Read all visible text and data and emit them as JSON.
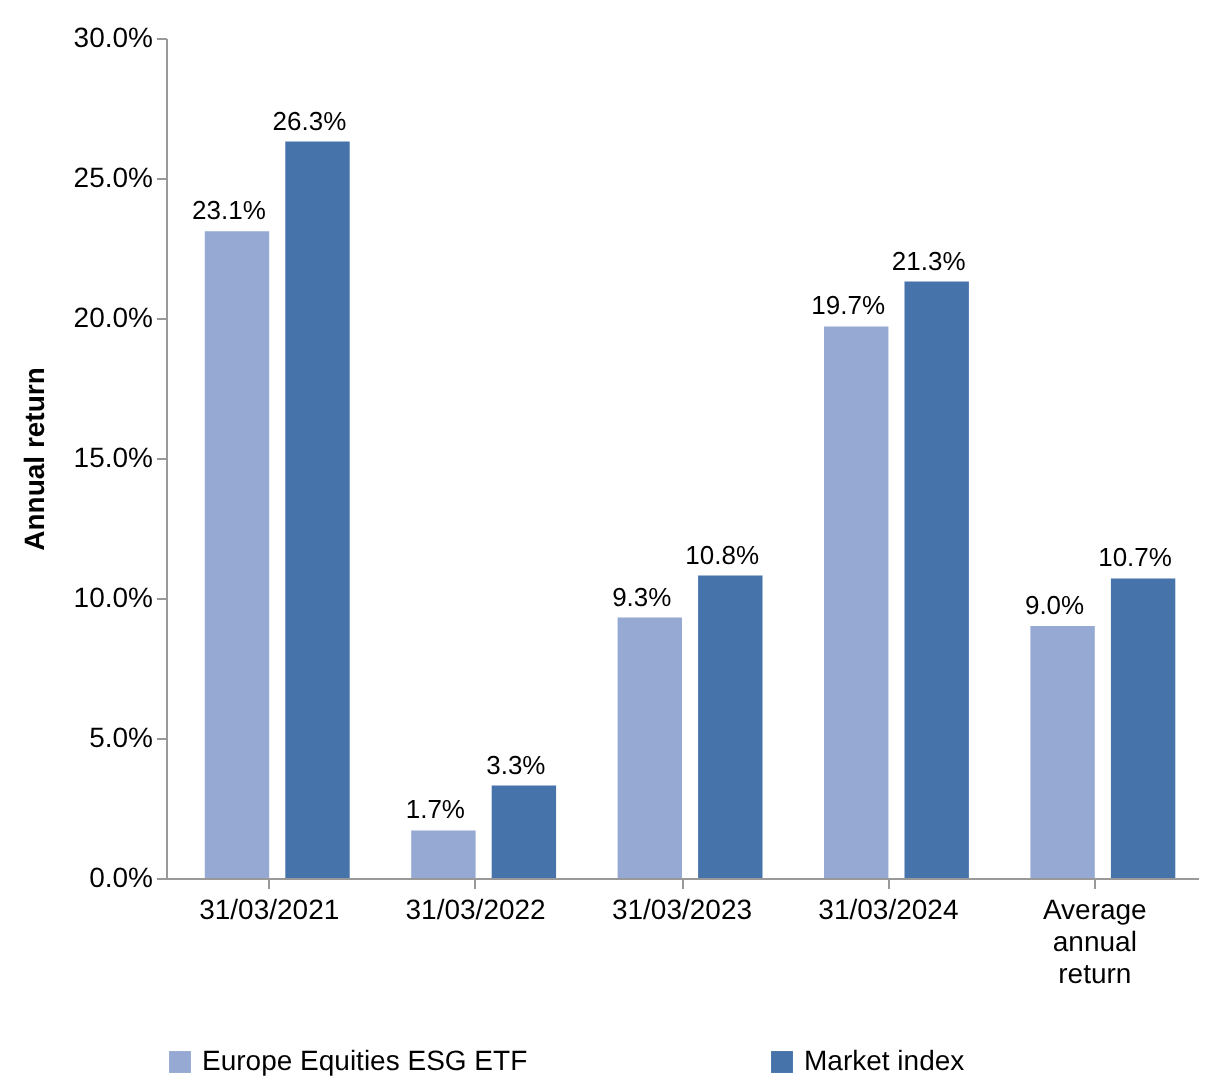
{
  "chart_data": {
    "type": "bar",
    "ylabel": "Annual return",
    "categories": [
      "31/03/2021",
      "31/03/2022",
      "31/03/2023",
      "31/03/2024",
      "Average annual return"
    ],
    "series": [
      {
        "name": "Europe Equities ESG ETF",
        "color": "#95a9d3",
        "values": [
          23.1,
          1.7,
          9.3,
          19.7,
          9.0
        ],
        "value_labels": [
          "23.1%",
          "1.7%",
          "9.3%",
          "19.7%",
          "9.0%"
        ]
      },
      {
        "name": "Market index",
        "color": "#4673aa",
        "values": [
          26.3,
          3.3,
          10.8,
          21.3,
          10.7
        ],
        "value_labels": [
          "26.3%",
          "3.3%",
          "10.8%",
          "21.3%",
          "10.7%"
        ]
      }
    ],
    "ylim": [
      0,
      30
    ],
    "yticks": [
      {
        "value": 0,
        "label": "0.0%"
      },
      {
        "value": 5,
        "label": "5.0%"
      },
      {
        "value": 10,
        "label": "10.0%"
      },
      {
        "value": 15,
        "label": "15.0%"
      },
      {
        "value": 20,
        "label": "20.0%"
      },
      {
        "value": 25,
        "label": "25.0%"
      },
      {
        "value": 30,
        "label": "30.0%"
      }
    ],
    "grid": false,
    "legend": "bottom"
  }
}
